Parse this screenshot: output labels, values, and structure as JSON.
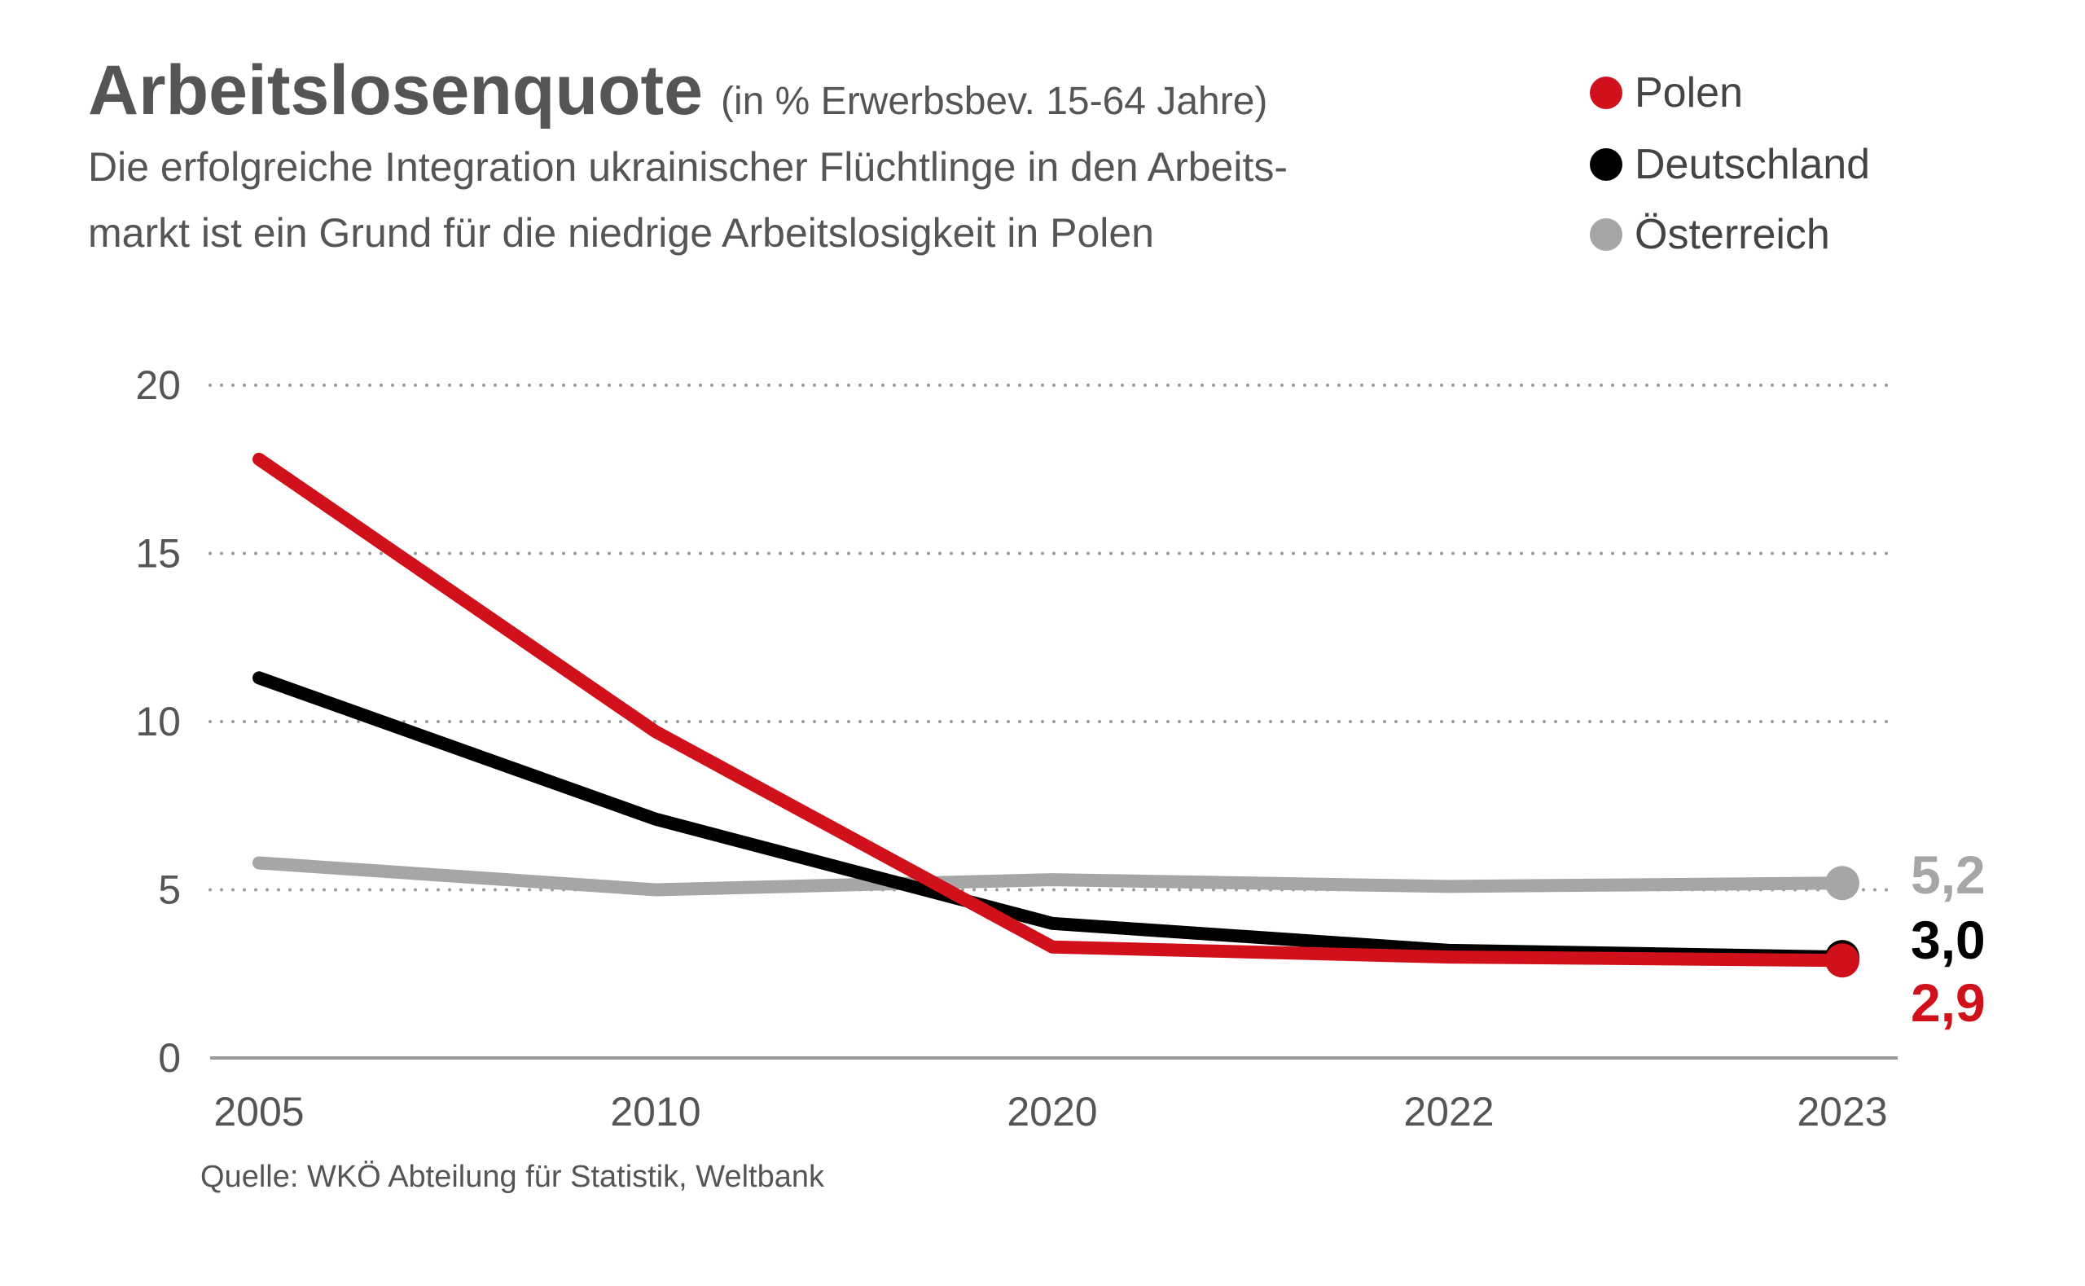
{
  "header": {
    "title": "Arbeitslosenquote",
    "unit": "(in % Erwerbsbev. 15-64 Jahre)",
    "desc_line1": "Die erfolgreiche Integration ukrainischer Flüchtlinge in den Arbeits-",
    "desc_line2": "markt ist ein Grund für die niedrige Arbeitslosigkeit in Polen"
  },
  "legend": [
    {
      "label": "Polen",
      "color": "#d0111b"
    },
    {
      "label": "Deutschland",
      "color": "#000000"
    },
    {
      "label": "Österreich",
      "color": "#a6a6a6"
    }
  ],
  "source": "Quelle: WKÖ Abteilung für Statistik, Weltbank",
  "chart_data": {
    "type": "line",
    "title": "Arbeitslosenquote",
    "xlabel": "",
    "ylabel": "in % Erwerbsbev. 15-64 Jahre",
    "categories": [
      "2005",
      "2010",
      "2020",
      "2022",
      "2023"
    ],
    "ylim": [
      0,
      20
    ],
    "yticks": [
      "0",
      "5",
      "10",
      "15",
      "20"
    ],
    "grid": true,
    "series": [
      {
        "name": "Österreich",
        "color": "#a6a6a6",
        "values": [
          5.8,
          5.0,
          5.3,
          5.1,
          5.2
        ],
        "end_label": "5,2"
      },
      {
        "name": "Deutschland",
        "color": "#000000",
        "values": [
          11.3,
          7.1,
          4.0,
          3.2,
          3.0
        ],
        "end_label": "3,0"
      },
      {
        "name": "Polen",
        "color": "#d0111b",
        "values": [
          17.8,
          9.7,
          3.3,
          3.0,
          2.9
        ],
        "end_label": "2,9"
      }
    ]
  }
}
